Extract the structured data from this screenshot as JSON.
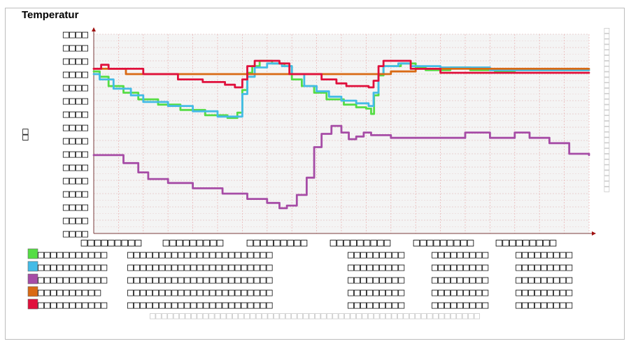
{
  "panel": {
    "title": "Temperatur"
  },
  "chart_data": {
    "type": "line",
    "title": "",
    "ylabel_glyphs": "□□",
    "y_tick_glyph": "□□□□",
    "y_tick_count": 16,
    "x_tick_glyph": "□□□□□□□□□",
    "x_tick_count": 6,
    "right_label_glyph": "□□□□□□□□□□□□□□□□□□□□□□□□□□□□□□",
    "footer_glyph": "□□□□□□□□□□□□□□□□□□□□□□□□□□□□□□□□□□□□□□□□□□□□□□□□□□□□□□□□",
    "x_range": [
      0,
      1
    ],
    "y_range": [
      0,
      15
    ],
    "grid": true,
    "series": [
      {
        "color": "#55dd44",
        "legend": [
          "□□□□□□□□□□□",
          "□□□□□□□□□□□□□□□□□□□□□□□",
          "□□□□□□□□□",
          "□□□□□□□□□",
          "□□□□□□□□□"
        ],
        "points": [
          [
            0,
            12.2
          ],
          [
            0.012,
            11.8
          ],
          [
            0.03,
            11.1
          ],
          [
            0.06,
            10.6
          ],
          [
            0.09,
            10.1
          ],
          [
            0.13,
            9.7
          ],
          [
            0.175,
            9.3
          ],
          [
            0.225,
            8.9
          ],
          [
            0.27,
            8.7
          ],
          [
            0.29,
            9.1
          ],
          [
            0.3,
            10.8
          ],
          [
            0.31,
            12.1
          ],
          [
            0.32,
            12.6
          ],
          [
            0.335,
            13.0
          ],
          [
            0.36,
            12.8
          ],
          [
            0.385,
            12.6
          ],
          [
            0.4,
            11.6
          ],
          [
            0.42,
            11.1
          ],
          [
            0.445,
            10.6
          ],
          [
            0.47,
            10.1
          ],
          [
            0.505,
            9.7
          ],
          [
            0.53,
            9.5
          ],
          [
            0.55,
            9.4
          ],
          [
            0.56,
            9.0
          ],
          [
            0.566,
            10.4
          ],
          [
            0.575,
            11.9
          ],
          [
            0.585,
            12.6
          ],
          [
            0.62,
            12.8
          ],
          [
            0.65,
            12.5
          ],
          [
            0.67,
            12.3
          ],
          [
            0.72,
            12.5
          ],
          [
            0.76,
            12.3
          ],
          [
            0.81,
            12.2
          ],
          [
            0.85,
            12.3
          ],
          [
            0.9,
            12.3
          ],
          [
            0.95,
            12.3
          ],
          [
            1.0,
            12.3
          ]
        ]
      },
      {
        "color": "#44bbe6",
        "legend": [
          "□□□□□□□□□□□",
          "□□□□□□□□□□□□□□□□□□□□□□□",
          "□□□□□□□□□",
          "□□□□□□□□□",
          "□□□□□□□□□"
        ],
        "points": [
          [
            0,
            12.0
          ],
          [
            0.012,
            11.6
          ],
          [
            0.04,
            10.9
          ],
          [
            0.075,
            10.4
          ],
          [
            0.1,
            9.9
          ],
          [
            0.15,
            9.6
          ],
          [
            0.2,
            9.2
          ],
          [
            0.25,
            8.8
          ],
          [
            0.29,
            8.8
          ],
          [
            0.3,
            10.5
          ],
          [
            0.31,
            11.8
          ],
          [
            0.325,
            12.5
          ],
          [
            0.35,
            12.8
          ],
          [
            0.38,
            12.6
          ],
          [
            0.4,
            12.0
          ],
          [
            0.425,
            11.1
          ],
          [
            0.45,
            10.7
          ],
          [
            0.475,
            10.3
          ],
          [
            0.5,
            10.0
          ],
          [
            0.53,
            9.8
          ],
          [
            0.555,
            9.6
          ],
          [
            0.565,
            10.6
          ],
          [
            0.575,
            12.0
          ],
          [
            0.585,
            12.6
          ],
          [
            0.615,
            12.8
          ],
          [
            0.64,
            12.6
          ],
          [
            0.7,
            12.5
          ],
          [
            0.8,
            12.3
          ],
          [
            0.86,
            12.3
          ],
          [
            1.0,
            12.3
          ]
        ]
      },
      {
        "color": "#a64ca6",
        "legend": [
          "□□□□□□□□□□□",
          "□□□□□□□□□□□□□□□□□□□□□□□",
          "□□□□□□□□□",
          "□□□□□□□□□",
          "□□□□□□□□□"
        ],
        "points": [
          [
            0,
            5.9
          ],
          [
            0.05,
            5.9
          ],
          [
            0.06,
            5.3
          ],
          [
            0.09,
            4.6
          ],
          [
            0.11,
            4.1
          ],
          [
            0.15,
            3.8
          ],
          [
            0.2,
            3.4
          ],
          [
            0.26,
            3.0
          ],
          [
            0.31,
            2.6
          ],
          [
            0.35,
            2.3
          ],
          [
            0.375,
            1.9
          ],
          [
            0.39,
            2.1
          ],
          [
            0.41,
            2.9
          ],
          [
            0.43,
            4.2
          ],
          [
            0.445,
            6.5
          ],
          [
            0.46,
            7.5
          ],
          [
            0.48,
            8.1
          ],
          [
            0.5,
            7.6
          ],
          [
            0.515,
            7.1
          ],
          [
            0.53,
            7.3
          ],
          [
            0.545,
            7.6
          ],
          [
            0.56,
            7.4
          ],
          [
            0.6,
            7.2
          ],
          [
            0.74,
            7.2
          ],
          [
            0.75,
            7.6
          ],
          [
            0.78,
            7.6
          ],
          [
            0.8,
            7.2
          ],
          [
            0.84,
            7.2
          ],
          [
            0.85,
            7.6
          ],
          [
            0.88,
            7.2
          ],
          [
            0.92,
            6.8
          ],
          [
            0.96,
            6.0
          ],
          [
            1.0,
            5.9
          ]
        ]
      },
      {
        "color": "#d96a14",
        "legend": [
          "□□□□□□□□□□",
          "□□□□□□□□□□□□□□□□□□□□□□□",
          "□□□□□□□□□",
          "□□□□□□□□□",
          "□□□□□□□□□"
        ],
        "points": [
          [
            0,
            12.4
          ],
          [
            0.06,
            12.4
          ],
          [
            0.065,
            12.0
          ],
          [
            0.2,
            12.0
          ],
          [
            0.29,
            12.0
          ],
          [
            0.3,
            12.0
          ],
          [
            0.4,
            12.0
          ],
          [
            0.45,
            12.0
          ],
          [
            0.5,
            12.0
          ],
          [
            0.55,
            12.0
          ],
          [
            0.6,
            12.2
          ],
          [
            0.65,
            12.4
          ],
          [
            0.75,
            12.4
          ],
          [
            0.85,
            12.4
          ],
          [
            1.0,
            12.4
          ]
        ]
      },
      {
        "color": "#e0103c",
        "legend": [
          "□□□□□□□□□□□",
          "□□□□□□□□□□□□□□□□□□□□□□□",
          "□□□□□□□□□",
          "□□□□□□□□□",
          "□□□□□□□□□"
        ],
        "points": [
          [
            0,
            12.4
          ],
          [
            0.015,
            12.7
          ],
          [
            0.03,
            12.4
          ],
          [
            0.09,
            12.4
          ],
          [
            0.1,
            12.0
          ],
          [
            0.15,
            12.0
          ],
          [
            0.17,
            11.6
          ],
          [
            0.22,
            11.4
          ],
          [
            0.265,
            11.2
          ],
          [
            0.285,
            11.0
          ],
          [
            0.3,
            11.6
          ],
          [
            0.31,
            12.6
          ],
          [
            0.325,
            13.0
          ],
          [
            0.35,
            13.0
          ],
          [
            0.375,
            12.8
          ],
          [
            0.395,
            12.0
          ],
          [
            0.43,
            12.0
          ],
          [
            0.46,
            11.6
          ],
          [
            0.49,
            11.3
          ],
          [
            0.51,
            11.1
          ],
          [
            0.53,
            11.1
          ],
          [
            0.555,
            11.0
          ],
          [
            0.565,
            11.5
          ],
          [
            0.575,
            12.6
          ],
          [
            0.585,
            13.0
          ],
          [
            0.615,
            13.0
          ],
          [
            0.64,
            12.4
          ],
          [
            0.7,
            12.1
          ],
          [
            0.78,
            12.1
          ],
          [
            0.86,
            12.1
          ],
          [
            0.95,
            12.1
          ],
          [
            1.0,
            12.1
          ]
        ]
      }
    ]
  }
}
